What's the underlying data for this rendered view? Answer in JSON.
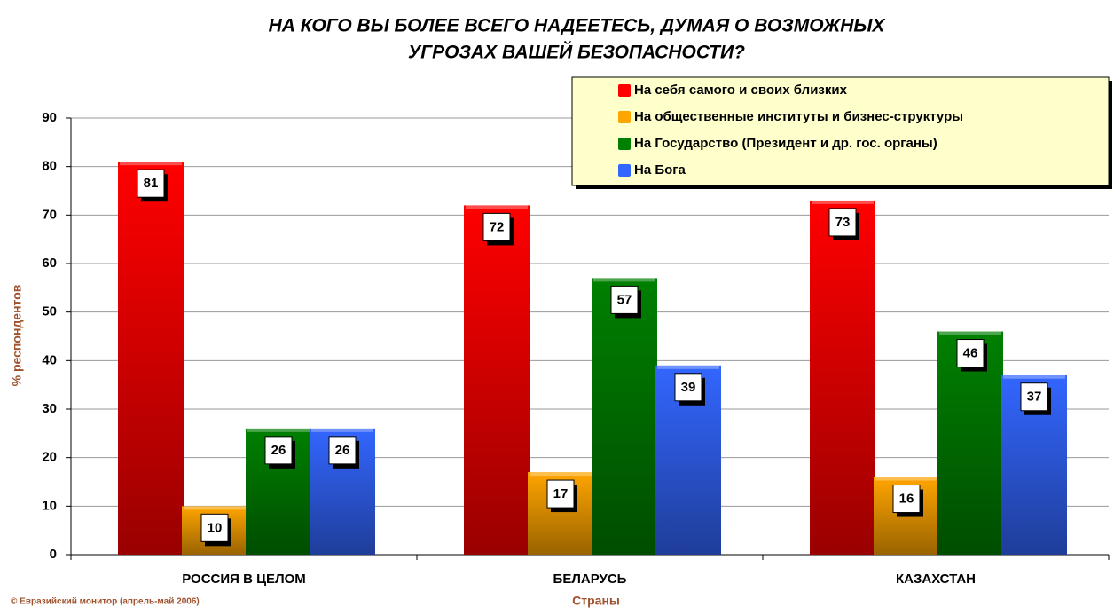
{
  "chart_data": {
    "type": "bar",
    "title": "НА КОГО ВЫ БОЛЕЕ ВСЕГО НАДЕЕТЕСЬ, ДУМАЯ О ВОЗМОЖНЫХ",
    "subtitle": "УГРОЗАХ ВАШЕЙ БЕЗОПАСНОСТИ?",
    "y_label": "% респондентов",
    "x_label": "Страны",
    "source": "© Евразийский монитор (апрель-май 2006)",
    "categories": [
      "РОССИЯ В ЦЕЛОМ",
      "БЕЛАРУСЬ",
      "КАЗАХСТАН"
    ],
    "series": [
      {
        "name": "На себя самого и своих близких",
        "color": "#ff0000",
        "values": [
          81,
          72,
          73
        ]
      },
      {
        "name": "На общественные институты и бизнес-структуры",
        "color": "#ffa500",
        "values": [
          10,
          17,
          16
        ]
      },
      {
        "name": "На Государство (Президент и др. гос. органы)",
        "color": "#008000",
        "values": [
          26,
          57,
          46
        ]
      },
      {
        "name": "На Бога",
        "color": "#3366ff",
        "values": [
          26,
          39,
          37
        ]
      }
    ],
    "ylim": [
      0,
      90
    ],
    "yticks": [
      0,
      10,
      20,
      30,
      40,
      50,
      60,
      70,
      80,
      90
    ],
    "grid": true,
    "legend": "top-right"
  }
}
